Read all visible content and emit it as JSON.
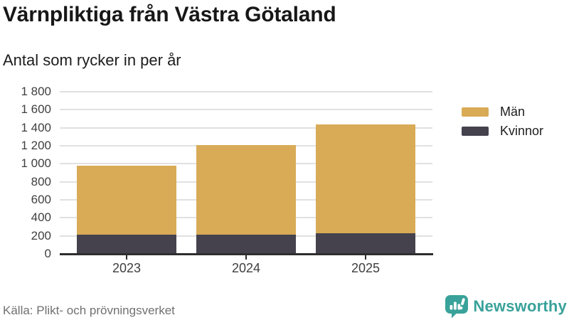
{
  "header": {
    "title": "Värnpliktiga från Västra Götaland",
    "subtitle": "Antal som rycker in per år"
  },
  "chart_data": {
    "type": "bar",
    "stacked": true,
    "categories": [
      "2023",
      "2024",
      "2025"
    ],
    "series": [
      {
        "name": "Män",
        "color": "#D9AB57",
        "values": [
          770,
          995,
          1210
        ]
      },
      {
        "name": "Kvinnor",
        "color": "#45424E",
        "values": [
          210,
          210,
          230
        ]
      }
    ],
    "stacked_totals": [
      980,
      1205,
      1440
    ],
    "ylim": [
      0,
      1800
    ],
    "ytick_step": 200,
    "ytick_labels": [
      "0",
      "200",
      "400",
      "600",
      "800",
      "1 000",
      "1 200",
      "1 400",
      "1 600",
      "1 800"
    ],
    "grid": true,
    "legend_position": "right-top"
  },
  "footer": {
    "source": "Källa: Plikt- och prövningsverket",
    "brand": "Newsworthy",
    "brand_icon": "newsworthy-speech-bubble-chart-icon"
  },
  "colors": {
    "men": "#D9AB57",
    "women": "#45424E",
    "brand_teal": "#39A29A",
    "gridline": "#E1E1E1",
    "axis": "#2E2E2E",
    "text_dark": "#171717",
    "text_axis": "#3F3F3F",
    "text_source": "#707070"
  }
}
